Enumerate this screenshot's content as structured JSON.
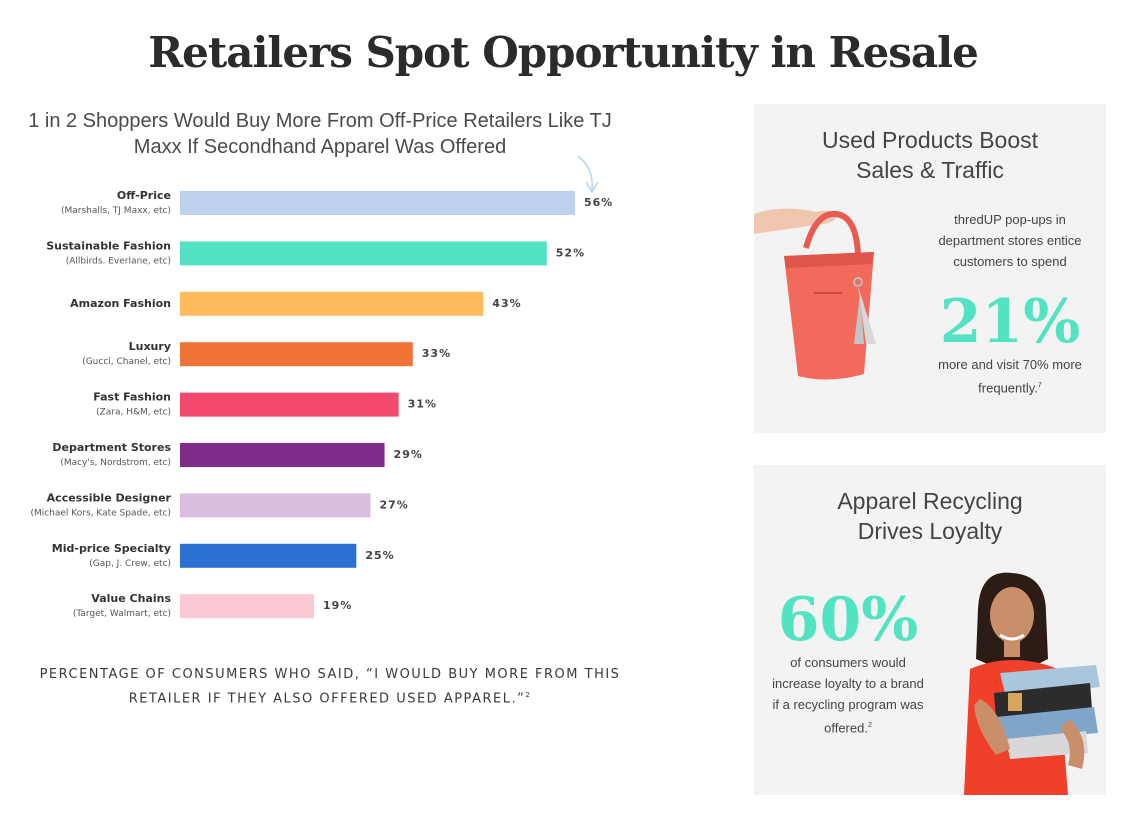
{
  "page": {
    "title": "Retailers Spot Opportunity in Resale"
  },
  "chart_data": {
    "type": "bar",
    "orientation": "horizontal",
    "title": "1 in 2 Shoppers Would Buy More From Off-Price Retailers Like TJ Maxx If Secondhand Apparel Was Offered",
    "categories": [
      {
        "name": "Off-Price",
        "sub": "(Marshalls, TJ Maxx, etc)"
      },
      {
        "name": "Sustainable Fashion",
        "sub": "(Allbirds. Everlane, etc)"
      },
      {
        "name": "Amazon Fashion",
        "sub": ""
      },
      {
        "name": "Luxury",
        "sub": "(Gucci, Chanel, etc)"
      },
      {
        "name": "Fast Fashion",
        "sub": "(Zara, H&M, etc)"
      },
      {
        "name": "Department Stores",
        "sub": "(Macy's, Nordstrom, etc)"
      },
      {
        "name": "Accessible Designer",
        "sub": "(Michael Kors, Kate Spade, etc)"
      },
      {
        "name": "Mid-price Specialty",
        "sub": "(Gap, J. Crew, etc)"
      },
      {
        "name": "Value Chains",
        "sub": "(Target, Walmart, etc)"
      }
    ],
    "values": [
      56,
      52,
      43,
      33,
      31,
      29,
      27,
      25,
      19
    ],
    "value_labels": [
      "56%",
      "52%",
      "43%",
      "33%",
      "31%",
      "29%",
      "27%",
      "25%",
      "19%"
    ],
    "colors": [
      "#bed2ee",
      "#52e3c2",
      "#ffbb5c",
      "#ee7334",
      "#f2496d",
      "#7e2b8a",
      "#d9bedf",
      "#2a6fd1",
      "#fbc9d3"
    ],
    "xlim": [
      0,
      56
    ],
    "grid": false,
    "caption": "PERCENTAGE OF CONSUMERS WHO SAID, “I WOULD BUY MORE FROM THIS RETAILER IF THEY ALSO OFFERED USED APPAREL.”",
    "caption_footnote": "2"
  },
  "panel1": {
    "title_line1": "Used Products Boost",
    "title_line2": "Sales & Traffic",
    "text": "thredUP pop-ups in department stores entice customers to spend",
    "big_number": "21%",
    "text2": "more and visit 70% more frequently.",
    "footnote": "7",
    "image_icon": "handbag-illustration"
  },
  "panel2": {
    "title_line1": "Apparel Recycling",
    "title_line2": "Drives Loyalty",
    "big_number": "60%",
    "text": "of consumers would increase loyalty to a brand if a recycling program was offered.",
    "footnote": "2",
    "image_icon": "woman-holding-clothes-illustration"
  },
  "colors": {
    "accent": "#52e3c2",
    "panel_bg": "#f3f3f3"
  }
}
